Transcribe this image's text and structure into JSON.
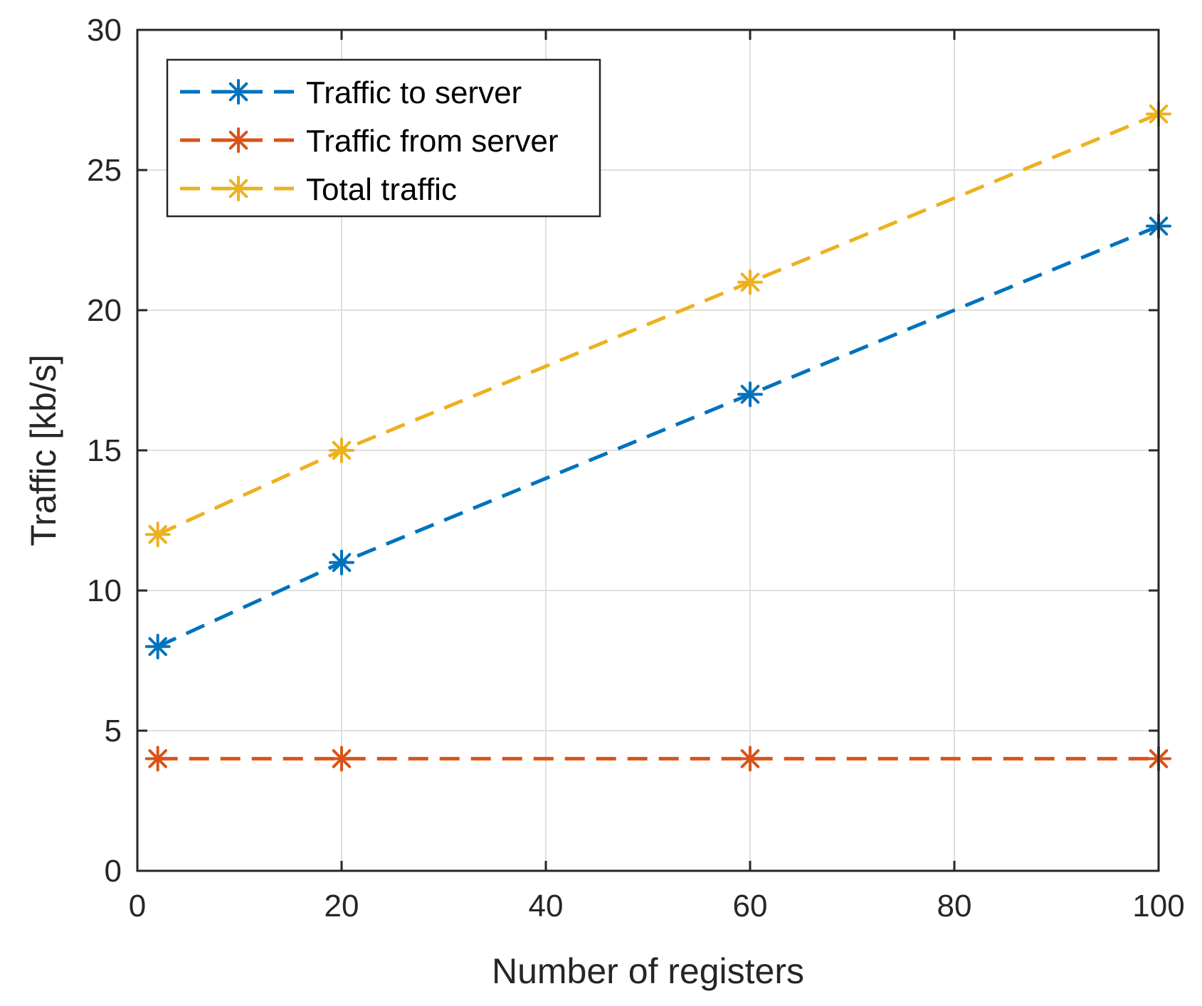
{
  "chart_data": {
    "type": "line",
    "title": "",
    "xlabel": "Number of registers",
    "ylabel": "Traffic [kb/s]",
    "xlim": [
      0,
      100
    ],
    "ylim": [
      0,
      30
    ],
    "xticks": [
      0,
      20,
      40,
      60,
      80,
      100
    ],
    "yticks": [
      0,
      5,
      10,
      15,
      20,
      25,
      30
    ],
    "xtick_labels": [
      "0",
      "20",
      "40",
      "60",
      "80",
      "100"
    ],
    "ytick_labels": [
      "0",
      "5",
      "10",
      "15",
      "20",
      "25",
      "30"
    ],
    "grid": true,
    "legend_position": "top-left",
    "x": [
      2,
      20,
      60,
      100
    ],
    "series": [
      {
        "name": "Traffic to server",
        "values": [
          8,
          11,
          17,
          23
        ],
        "color": "#0072BD",
        "marker": "asterisk",
        "line_style": "dashed"
      },
      {
        "name": "Traffic from server",
        "values": [
          4,
          4,
          4,
          4
        ],
        "color": "#D95319",
        "marker": "asterisk",
        "line_style": "dashed"
      },
      {
        "name": "Total traffic",
        "values": [
          12,
          15,
          21,
          27
        ],
        "color": "#EDB120",
        "marker": "asterisk",
        "line_style": "dashed"
      }
    ]
  }
}
